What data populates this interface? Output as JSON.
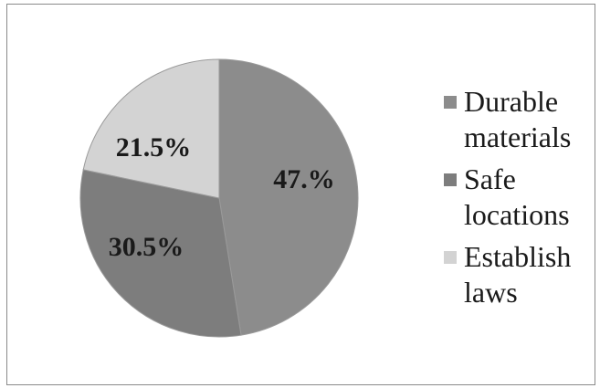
{
  "chart_data": {
    "type": "pie",
    "slices": [
      {
        "label": "Durable materials",
        "value": 47.0,
        "value_label": "47.%",
        "color": "#8c8c8c"
      },
      {
        "label": "Safe locations",
        "value": 30.5,
        "value_label": "30.5%",
        "color": "#7d7d7d"
      },
      {
        "label": "Establish laws",
        "value": 21.5,
        "value_label": "21.5%",
        "color": "#d3d3d3"
      }
    ],
    "legend_position": "right",
    "legend": [
      {
        "line1": "Durable",
        "line2": "materials"
      },
      {
        "line1": "Safe",
        "line2": "locations"
      },
      {
        "line1": "Establish",
        "line2": "laws"
      }
    ]
  }
}
